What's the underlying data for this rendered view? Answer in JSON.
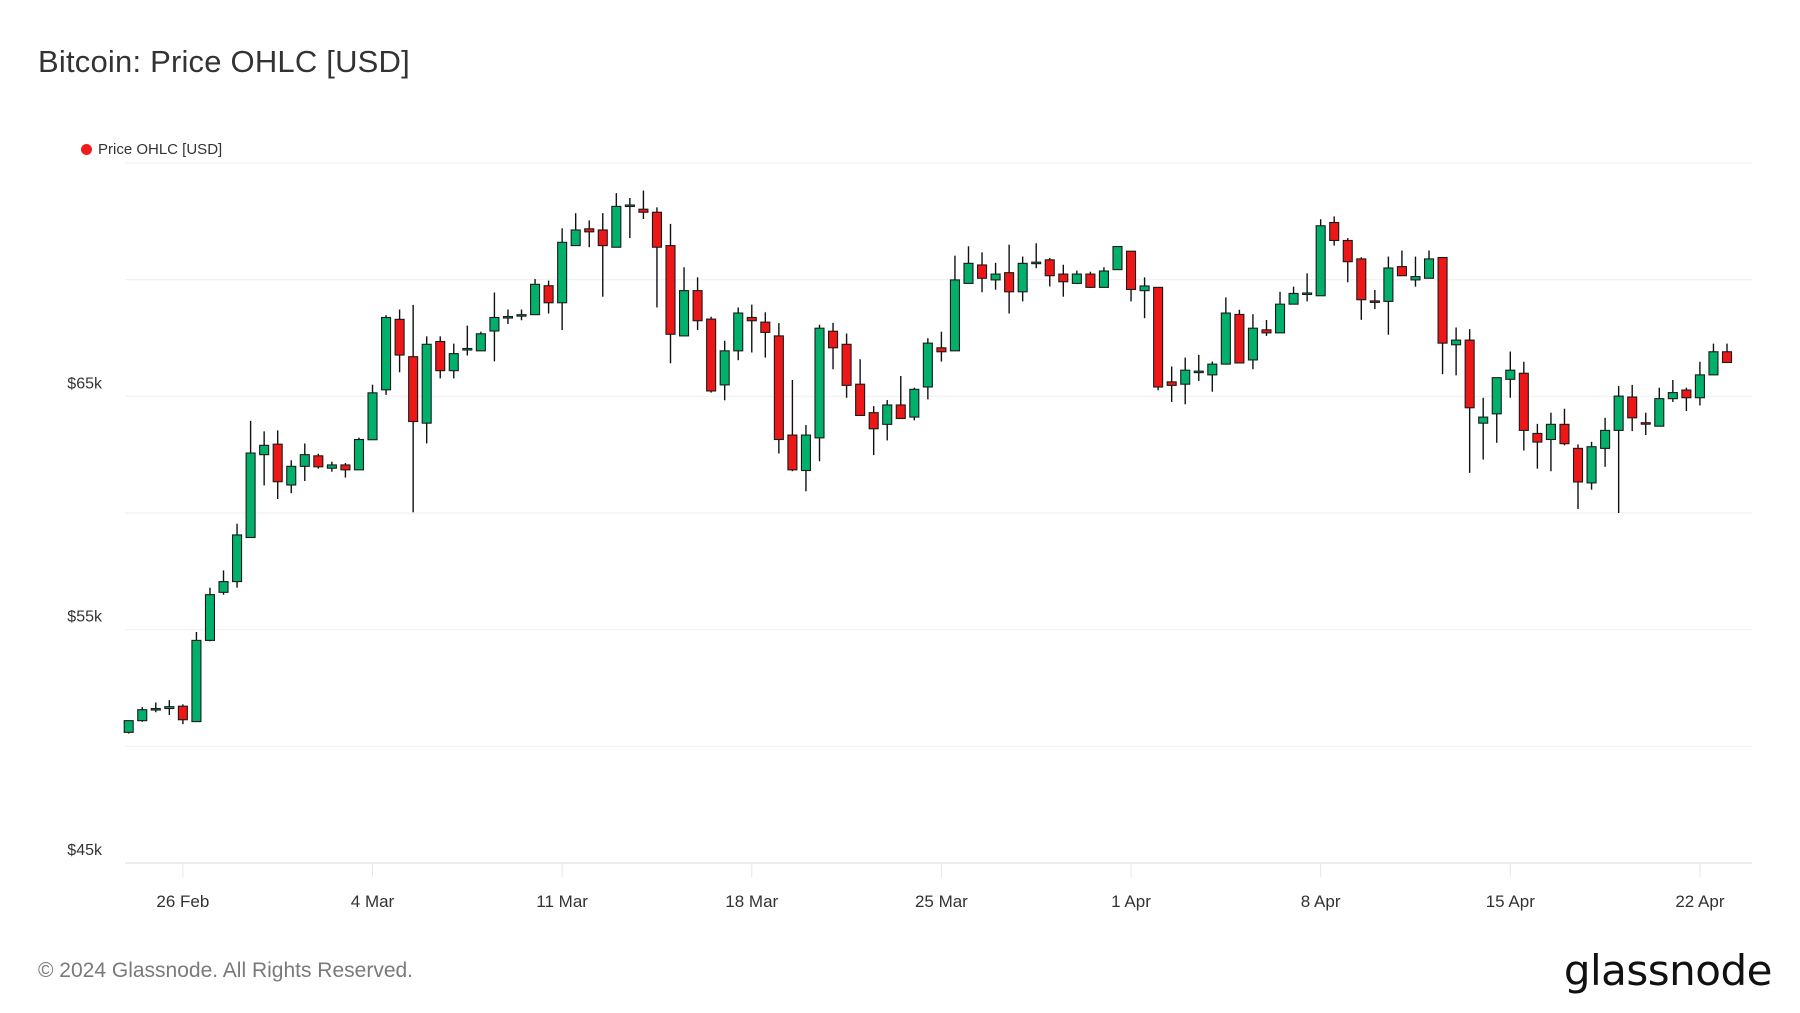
{
  "title": "Bitcoin: Price OHLC [USD]",
  "legend": {
    "label": "Price OHLC [USD]",
    "color": "#f01c1c"
  },
  "footer": {
    "copyright": "© 2024 Glassnode. All Rights Reserved.",
    "logo": "glassnode"
  },
  "chart_data": {
    "type": "candlestick",
    "title": "Bitcoin: Price OHLC [USD]",
    "interval": "12h",
    "ylim": [
      45000,
      75000
    ],
    "y_gridlines": [
      45000,
      50000,
      55000,
      60000,
      65000,
      70000,
      75000
    ],
    "y_ticks": [
      {
        "value": 45000,
        "label": "$45k"
      },
      {
        "value": 55000,
        "label": "$55k"
      },
      {
        "value": 65000,
        "label": "$65k"
      }
    ],
    "x_ticks": [
      {
        "t": "2024-02-26T00:00",
        "label": "26 Feb"
      },
      {
        "t": "2024-03-04T00:00",
        "label": "4 Mar"
      },
      {
        "t": "2024-03-11T00:00",
        "label": "11 Mar"
      },
      {
        "t": "2024-03-18T00:00",
        "label": "18 Mar"
      },
      {
        "t": "2024-03-25T00:00",
        "label": "25 Mar"
      },
      {
        "t": "2024-04-01T00:00",
        "label": "1 Apr"
      },
      {
        "t": "2024-04-08T00:00",
        "label": "8 Apr"
      },
      {
        "t": "2024-04-15T00:00",
        "label": "15 Apr"
      },
      {
        "t": "2024-04-22T00:00",
        "label": "22 Apr"
      }
    ],
    "grid": true,
    "legend_position": "top-left",
    "colors": {
      "up": "#00b06b",
      "down": "#ee1717",
      "outline": "#1a1a1a"
    },
    "columns": [
      "t",
      "open",
      "high",
      "low",
      "close"
    ],
    "candles": [
      [
        "2024-02-24T00:00",
        50600,
        51100,
        50550,
        51100
      ],
      [
        "2024-02-24T12:00",
        51100,
        51680,
        51050,
        51570
      ],
      [
        "2024-02-25T00:00",
        51600,
        51880,
        51460,
        51620
      ],
      [
        "2024-02-25T12:00",
        51620,
        51980,
        51340,
        51700
      ],
      [
        "2024-02-26T00:00",
        51720,
        51800,
        50950,
        51140
      ],
      [
        "2024-02-26T12:00",
        51060,
        54900,
        51060,
        54540
      ],
      [
        "2024-02-27T00:00",
        54540,
        56800,
        54500,
        56500
      ],
      [
        "2024-02-27T12:00",
        56600,
        57540,
        56500,
        57060
      ],
      [
        "2024-02-28T00:00",
        57060,
        59540,
        56800,
        59060
      ],
      [
        "2024-02-28T12:00",
        58950,
        63950,
        58950,
        62570
      ],
      [
        "2024-02-29T00:00",
        62500,
        63500,
        61180,
        62900
      ],
      [
        "2024-02-29T12:00",
        62950,
        63540,
        60600,
        61340
      ],
      [
        "2024-03-01T00:00",
        61200,
        62260,
        60850,
        62000
      ],
      [
        "2024-03-01T12:00",
        62000,
        62980,
        61370,
        62500
      ],
      [
        "2024-03-02T00:00",
        62450,
        62540,
        61900,
        61980
      ],
      [
        "2024-03-02T12:00",
        61920,
        62200,
        61770,
        62060
      ],
      [
        "2024-03-03T00:00",
        62060,
        62140,
        61520,
        61850
      ],
      [
        "2024-03-03T12:00",
        61850,
        63230,
        61850,
        63150
      ],
      [
        "2024-03-04T00:00",
        63140,
        65500,
        63140,
        65150
      ],
      [
        "2024-03-04T12:00",
        65280,
        68480,
        65060,
        68380
      ],
      [
        "2024-03-05T00:00",
        68300,
        68720,
        66030,
        66770
      ],
      [
        "2024-03-05T12:00",
        66700,
        68920,
        60030,
        63920
      ],
      [
        "2024-03-06T00:00",
        63850,
        67570,
        62980,
        67230
      ],
      [
        "2024-03-06T12:00",
        67350,
        67570,
        65770,
        66100
      ],
      [
        "2024-03-07T00:00",
        66100,
        67260,
        65770,
        66830
      ],
      [
        "2024-03-07T12:00",
        67000,
        68030,
        66750,
        67050
      ],
      [
        "2024-03-08T00:00",
        66950,
        67770,
        66950,
        67680
      ],
      [
        "2024-03-08T12:00",
        67800,
        69450,
        66500,
        68380
      ],
      [
        "2024-03-09T00:00",
        68400,
        68720,
        68100,
        68420
      ],
      [
        "2024-03-09T12:00",
        68450,
        68720,
        68260,
        68500
      ],
      [
        "2024-03-10T00:00",
        68500,
        70030,
        68500,
        69800
      ],
      [
        "2024-03-10T12:00",
        69740,
        69960,
        68550,
        69010
      ],
      [
        "2024-03-11T00:00",
        69010,
        72200,
        67840,
        71600
      ],
      [
        "2024-03-11T12:00",
        71460,
        72850,
        71460,
        72130
      ],
      [
        "2024-03-12T00:00",
        72180,
        72540,
        71390,
        72050
      ],
      [
        "2024-03-12T12:00",
        72130,
        72850,
        69270,
        71460
      ],
      [
        "2024-03-13T00:00",
        71390,
        73710,
        71390,
        73140
      ],
      [
        "2024-03-13T12:00",
        73150,
        73500,
        71780,
        73200
      ],
      [
        "2024-03-14T00:00",
        73020,
        73820,
        72600,
        72890
      ],
      [
        "2024-03-14T12:00",
        72890,
        73100,
        68810,
        71390
      ],
      [
        "2024-03-15T00:00",
        71460,
        72390,
        66420,
        67660
      ],
      [
        "2024-03-15T12:00",
        67590,
        70530,
        67590,
        69530
      ],
      [
        "2024-03-16T00:00",
        69530,
        70100,
        67840,
        68240
      ],
      [
        "2024-03-16T12:00",
        68310,
        68410,
        65160,
        65230
      ],
      [
        "2024-03-17T00:00",
        65490,
        67380,
        64830,
        66950
      ],
      [
        "2024-03-17T12:00",
        66950,
        68810,
        66550,
        68570
      ],
      [
        "2024-03-18T00:00",
        68380,
        68930,
        66880,
        68240
      ],
      [
        "2024-03-18T12:00",
        68180,
        68600,
        66660,
        67740
      ],
      [
        "2024-03-19T00:00",
        67590,
        68140,
        62550,
        63150
      ],
      [
        "2024-03-19T12:00",
        63340,
        65700,
        61790,
        61850
      ],
      [
        "2024-03-20T00:00",
        61820,
        63770,
        60930,
        63340
      ],
      [
        "2024-03-20T12:00",
        63220,
        68070,
        62220,
        67920
      ],
      [
        "2024-03-21T00:00",
        67790,
        68150,
        66160,
        67080
      ],
      [
        "2024-03-21T12:00",
        67230,
        67690,
        64940,
        65470
      ],
      [
        "2024-03-22T00:00",
        65520,
        66590,
        64180,
        64180
      ],
      [
        "2024-03-22T12:00",
        64300,
        64580,
        62480,
        63610
      ],
      [
        "2024-03-23T00:00",
        63800,
        64840,
        63110,
        64630
      ],
      [
        "2024-03-23T12:00",
        64630,
        65870,
        64050,
        64050
      ],
      [
        "2024-03-24T00:00",
        64110,
        65370,
        63970,
        65300
      ],
      [
        "2024-03-24T12:00",
        65400,
        67490,
        64870,
        67280
      ],
      [
        "2024-03-25T00:00",
        67080,
        67770,
        66490,
        66910
      ],
      [
        "2024-03-25T12:00",
        66950,
        71030,
        66950,
        69990
      ],
      [
        "2024-03-26T00:00",
        69840,
        71430,
        69840,
        70700
      ],
      [
        "2024-03-26T12:00",
        70630,
        71170,
        69460,
        70060
      ],
      [
        "2024-03-27T00:00",
        69990,
        70720,
        69570,
        70240
      ],
      [
        "2024-03-27T12:00",
        70300,
        71500,
        68550,
        69480
      ],
      [
        "2024-03-28T00:00",
        69480,
        70990,
        69070,
        70700
      ],
      [
        "2024-03-28T12:00",
        70700,
        71560,
        70490,
        70750
      ],
      [
        "2024-03-29T00:00",
        70850,
        70930,
        69710,
        70170
      ],
      [
        "2024-03-29T12:00",
        70240,
        70640,
        69270,
        69910
      ],
      [
        "2024-03-30T00:00",
        69840,
        70390,
        69810,
        70240
      ],
      [
        "2024-03-30T12:00",
        70240,
        70340,
        69640,
        69670
      ],
      [
        "2024-03-31T00:00",
        69670,
        70530,
        69670,
        70370
      ],
      [
        "2024-03-31T12:00",
        70430,
        71420,
        70430,
        71420
      ],
      [
        "2024-04-01T00:00",
        71220,
        71220,
        69070,
        69580
      ],
      [
        "2024-04-01T12:00",
        69530,
        70100,
        68350,
        69730
      ],
      [
        "2024-04-02T00:00",
        69670,
        69670,
        65260,
        65400
      ],
      [
        "2024-04-02T12:00",
        65620,
        66280,
        64760,
        65470
      ],
      [
        "2024-04-03T00:00",
        65520,
        66660,
        64660,
        66120
      ],
      [
        "2024-04-03T12:00",
        66050,
        66780,
        65660,
        66080
      ],
      [
        "2024-04-04T00:00",
        65920,
        66490,
        65200,
        66380
      ],
      [
        "2024-04-04T12:00",
        66380,
        69240,
        66380,
        68570
      ],
      [
        "2024-04-05T00:00",
        68510,
        68710,
        66430,
        66430
      ],
      [
        "2024-04-05T12:00",
        66560,
        68520,
        66160,
        67920
      ],
      [
        "2024-04-06T00:00",
        67850,
        68270,
        67590,
        67720
      ],
      [
        "2024-04-06T12:00",
        67720,
        69480,
        67720,
        68950
      ],
      [
        "2024-04-07T00:00",
        68950,
        69700,
        68950,
        69410
      ],
      [
        "2024-04-07T12:00",
        69400,
        70270,
        69070,
        69430
      ],
      [
        "2024-04-08T00:00",
        69310,
        72590,
        69310,
        72310
      ],
      [
        "2024-04-08T12:00",
        72450,
        72710,
        71460,
        71680
      ],
      [
        "2024-04-09T00:00",
        71680,
        71780,
        69890,
        70770
      ],
      [
        "2024-04-09T12:00",
        70890,
        70960,
        68280,
        69140
      ],
      [
        "2024-04-10T00:00",
        69090,
        69560,
        68740,
        69050
      ],
      [
        "2024-04-10T12:00",
        69070,
        70990,
        67640,
        70500
      ],
      [
        "2024-04-11T00:00",
        70560,
        71250,
        70170,
        70170
      ],
      [
        "2024-04-11T12:00",
        69990,
        70990,
        69700,
        70130
      ],
      [
        "2024-04-12T00:00",
        70060,
        71250,
        70060,
        70890
      ],
      [
        "2024-04-12T12:00",
        70950,
        70950,
        65950,
        67280
      ],
      [
        "2024-04-13T00:00",
        67210,
        67950,
        65900,
        67410
      ],
      [
        "2024-04-13T12:00",
        67410,
        67880,
        61720,
        64510
      ],
      [
        "2024-04-14T00:00",
        63850,
        64940,
        62290,
        64110
      ],
      [
        "2024-04-14T12:00",
        64250,
        65800,
        63010,
        65800
      ],
      [
        "2024-04-15T00:00",
        65730,
        66920,
        64940,
        66120
      ],
      [
        "2024-04-15T12:00",
        65990,
        66480,
        62680,
        63540
      ],
      [
        "2024-04-16T00:00",
        63410,
        63820,
        61900,
        63040
      ],
      [
        "2024-04-16T12:00",
        63150,
        64300,
        61790,
        63800
      ],
      [
        "2024-04-17T00:00",
        63800,
        64470,
        62900,
        62970
      ],
      [
        "2024-04-17T12:00",
        62770,
        62940,
        60170,
        61330
      ],
      [
        "2024-04-18T00:00",
        61290,
        63050,
        61000,
        62840
      ],
      [
        "2024-04-18T12:00",
        62770,
        64080,
        61980,
        63540
      ],
      [
        "2024-04-19T00:00",
        63540,
        65440,
        60000,
        65010
      ],
      [
        "2024-04-19T12:00",
        64970,
        65490,
        63510,
        64080
      ],
      [
        "2024-04-20T00:00",
        63870,
        64300,
        63340,
        63850
      ],
      [
        "2024-04-20T12:00",
        63720,
        65370,
        63720,
        64900
      ],
      [
        "2024-04-21T00:00",
        64900,
        65700,
        64760,
        65160
      ],
      [
        "2024-04-21T12:00",
        65270,
        65370,
        64370,
        64940
      ],
      [
        "2024-04-22T00:00",
        64940,
        66480,
        64610,
        65920
      ],
      [
        "2024-04-22T12:00",
        65920,
        67260,
        65920,
        66910
      ],
      [
        "2024-04-23T00:00",
        66910,
        67260,
        66450,
        66450
      ]
    ]
  }
}
